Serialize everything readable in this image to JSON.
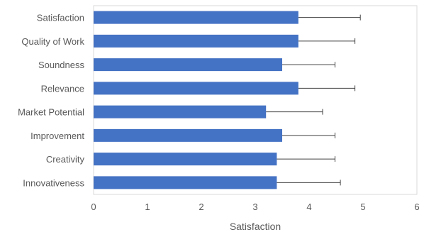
{
  "chart_data": {
    "type": "bar",
    "orientation": "horizontal",
    "categories": [
      "Satisfaction",
      "Quality of Work",
      "Soundness",
      "Relevance",
      "Market Potential",
      "Improvement",
      "Creativity",
      "Innovativeness"
    ],
    "values": [
      3.8,
      3.8,
      3.5,
      3.8,
      3.2,
      3.5,
      3.4,
      3.4
    ],
    "error_plus": [
      1.15,
      1.05,
      0.98,
      1.05,
      1.05,
      0.98,
      1.08,
      1.18
    ],
    "xlabel": "Satisfaction",
    "ylabel": "",
    "xlim": [
      0,
      6
    ],
    "xticks": [
      0,
      1,
      2,
      3,
      4,
      5,
      6
    ],
    "grid": false,
    "legend": "none",
    "colors": {
      "bar": "#4472C4",
      "error_bar": "#404040",
      "frame": "#D9D9D9",
      "text": "#595959"
    }
  }
}
